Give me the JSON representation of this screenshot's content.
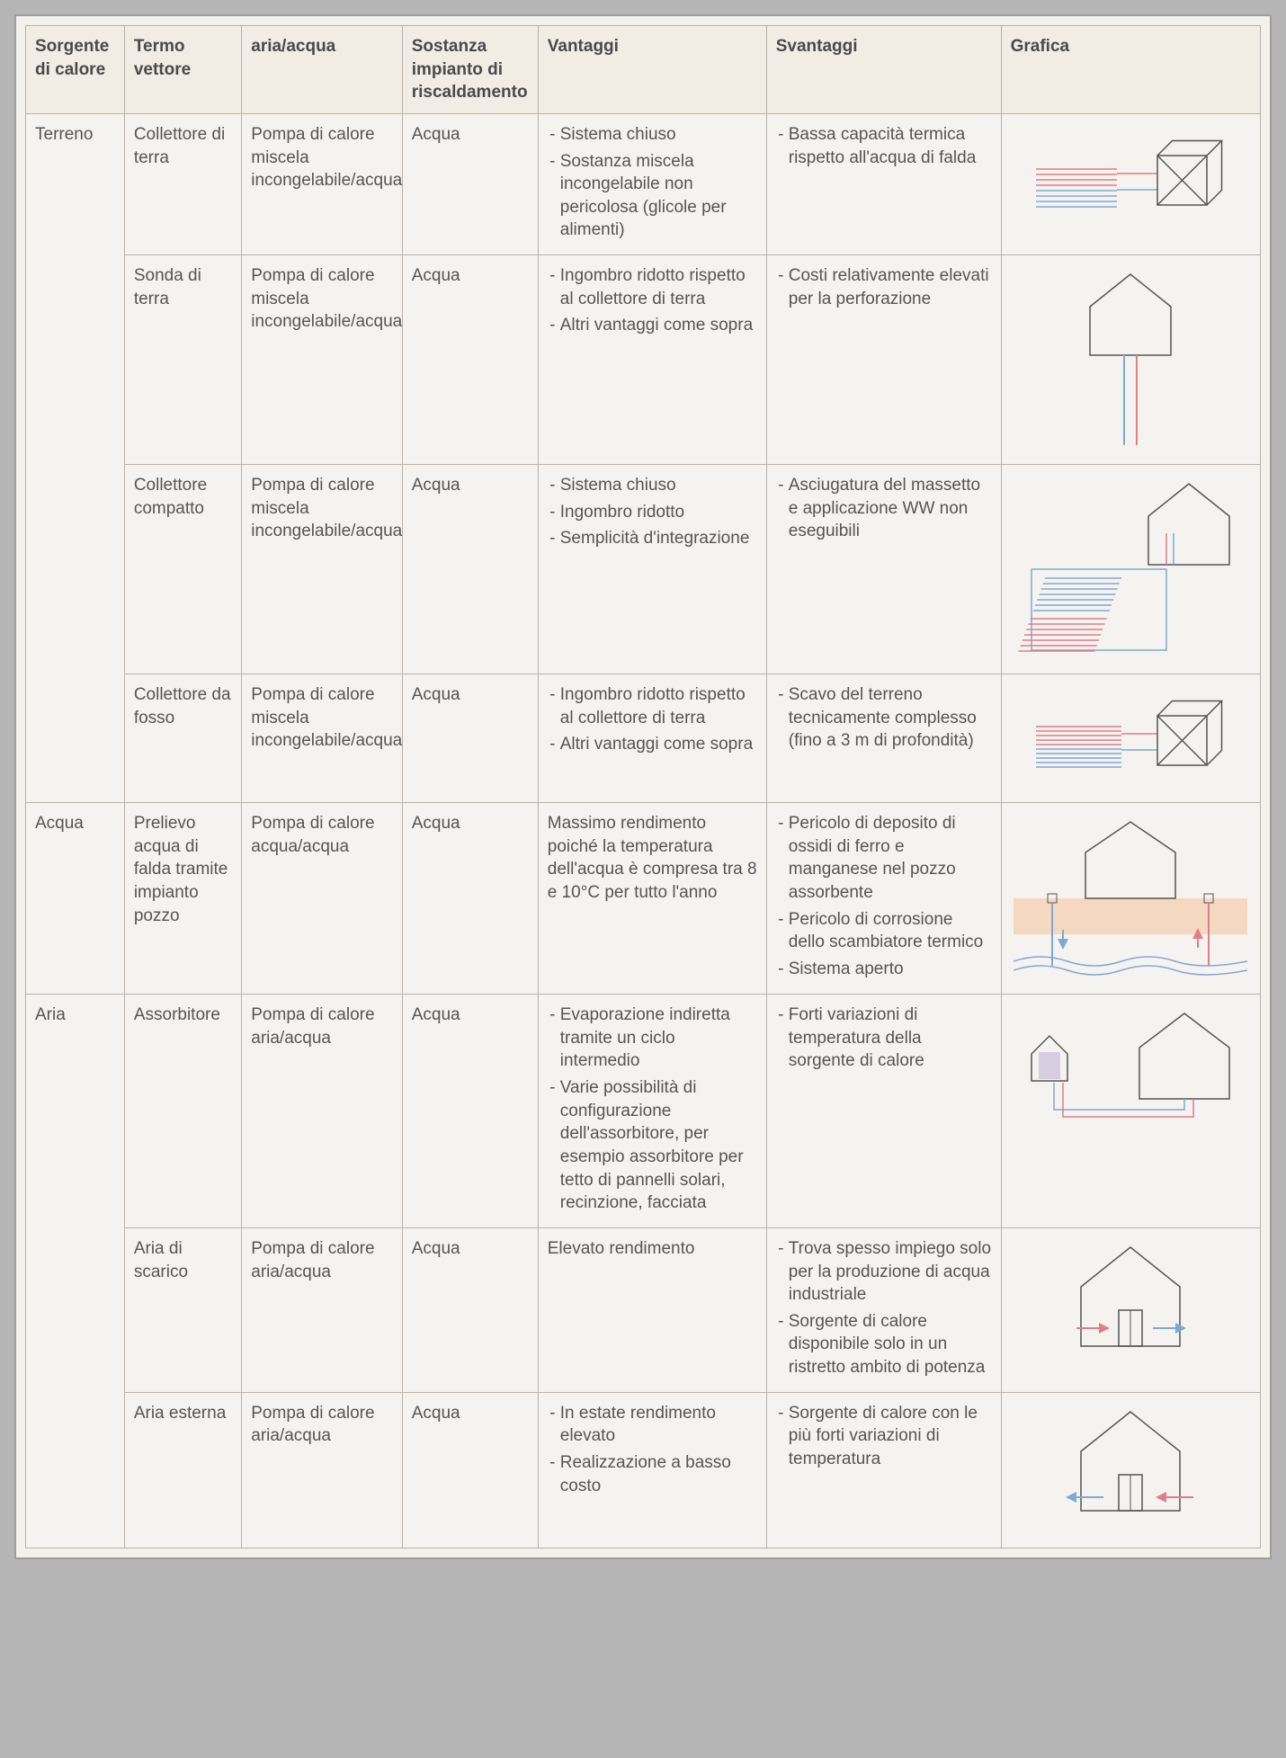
{
  "columns": {
    "sorgente": "Sorgente di calore",
    "termo": "Termo vettore",
    "ariaacqua": "aria/acqua",
    "sostanza": "Sostanza impianto di riscaldamento",
    "vantaggi": "Vantaggi",
    "svantaggi": "Svantaggi",
    "grafica": "Grafica"
  },
  "groups": [
    {
      "sorgente": "Terreno",
      "rows": [
        {
          "termo": "Collettore di terra",
          "ariaacqua": "Pompa di calore miscela incongelabile/acqua",
          "sostanza": "Acqua",
          "vantaggi_list": [
            "Sistema chiuso",
            "Sostanza miscela incongelabile non pericolosa (glicole per alimenti)"
          ],
          "svantaggi_list": [
            "Bassa capacità termica rispetto all'acqua di falda"
          ],
          "graphic": "coll-terra"
        },
        {
          "termo": "Sonda di terra",
          "ariaacqua": "Pompa di calore miscela incongelabile/acqua",
          "sostanza": "Acqua",
          "vantaggi_list": [
            "Ingombro ridotto rispetto al collettore di terra",
            "Altri vantaggi come sopra"
          ],
          "svantaggi_list": [
            "Costi relativamente elevati per la perforazione"
          ],
          "graphic": "sonda"
        },
        {
          "termo": "Collettore compatto",
          "ariaacqua": "Pompa di calore miscela incongelabile/acqua",
          "sostanza": "Acqua",
          "vantaggi_list": [
            "Sistema chiuso",
            "Ingombro ridotto",
            "Semplicità d'integrazione"
          ],
          "svantaggi_list": [
            "Asciugatura del massetto e applicazione WW non eseguibili"
          ],
          "graphic": "compatto"
        },
        {
          "termo": "Collettore da fosso",
          "ariaacqua": "Pompa di calore miscela incongelabile/acqua",
          "sostanza": "Acqua",
          "vantaggi_list": [
            "Ingombro ridotto rispetto al collettore di terra",
            "Altri vantaggi come sopra"
          ],
          "svantaggi_list": [
            "Scavo del terreno tecnicamente complesso (fino a 3 m di profondità)"
          ],
          "graphic": "fosso"
        }
      ]
    },
    {
      "sorgente": "Acqua",
      "rows": [
        {
          "termo": "Prelievo acqua di falda tramite impianto pozzo",
          "ariaacqua": "Pompa di calore acqua/acqua",
          "sostanza": "Acqua",
          "vantaggi_text": "Massimo rendimento poiché la temperatura dell'acqua è compresa tra 8 e 10°C per tutto l'anno",
          "svantaggi_list": [
            "Pericolo di deposito di ossidi di ferro e manganese nel pozzo assorbente",
            "Pericolo di corrosione dello scambiatore termico",
            "Sistema aperto"
          ],
          "graphic": "acqua"
        }
      ]
    },
    {
      "sorgente": "Aria",
      "rows": [
        {
          "termo": "Assorbitore",
          "ariaacqua": "Pompa di calore aria/acqua",
          "sostanza": "Acqua",
          "vantaggi_list": [
            "Evaporazione indiretta tramite un ciclo intermedio",
            "Varie possibilità di configurazione dell'assorbitore, per esempio assorbitore per tetto di pannelli solari, recinzione, facciata"
          ],
          "svantaggi_list": [
            "Forti variazioni di temperatura della sorgente di calore"
          ],
          "graphic": "assorbitore"
        },
        {
          "termo": "Aria di scarico",
          "ariaacqua": "Pompa di calore aria/acqua",
          "sostanza": "Acqua",
          "vantaggi_text": "Elevato rendimento",
          "svantaggi_list": [
            "Trova spesso impiego solo per la produzione di acqua industriale",
            "Sorgente di calore disponibile solo in un ristretto ambito di potenza"
          ],
          "graphic": "scarico"
        },
        {
          "termo": "Aria esterna",
          "ariaacqua": "Pompa di calore aria/acqua",
          "sostanza": "Acqua",
          "vantaggi_list": [
            "In estate rendimento elevato",
            "Realizzazione a basso costo"
          ],
          "svantaggi_list": [
            "Sorgente di calore con le più forti variazioni di temperatura"
          ],
          "graphic": "esterna"
        }
      ]
    }
  ],
  "style": {
    "colors": {
      "border": "#b8b2aa",
      "header_bg": "#f1ece4",
      "page_bg": "#f3f1ec",
      "body_bg": "#b5b5b5",
      "text": "#555555",
      "red": "#e07d88",
      "blue": "#7fa8d4",
      "house_stroke": "#555555",
      "ground_fill": "#f4c79e"
    },
    "font_size_pt": 14
  }
}
